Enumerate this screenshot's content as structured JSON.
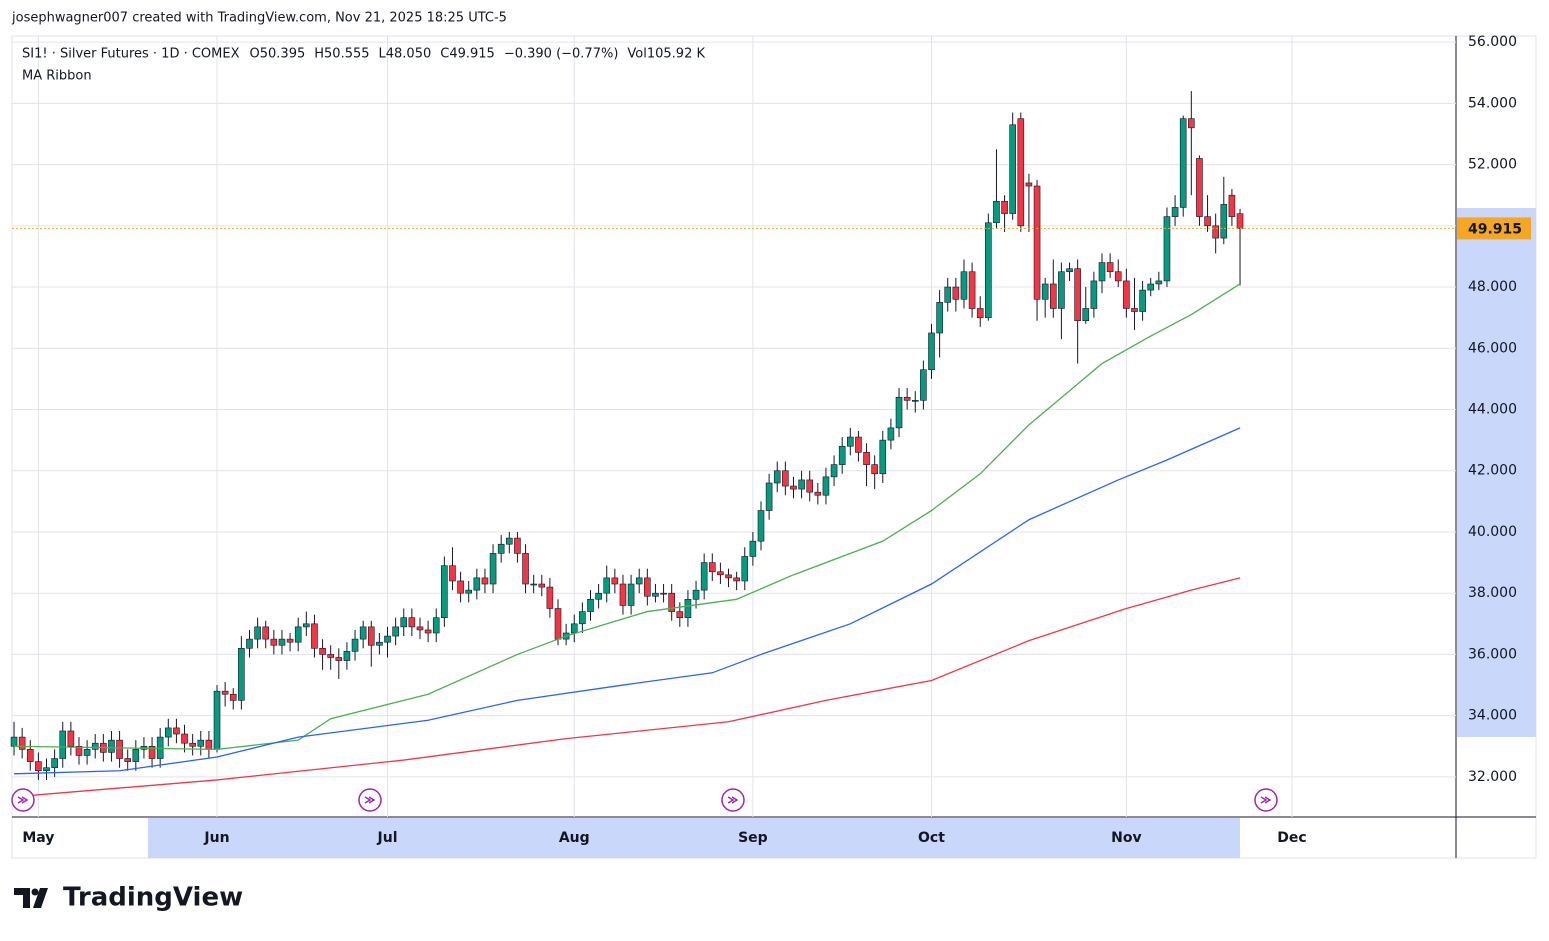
{
  "chart_data": {
    "type": "candlestick",
    "credit": "josephwagner007 created with TradingView.com, Nov 21, 2025 18:25 UTC-5",
    "title": "SI1! · Silver Futures · 1D · COMEX",
    "stats": [
      "O50.395",
      "H50.555",
      "L48.050",
      "C49.915",
      "−0.390 (−0.77%)",
      "Vol105.92 K"
    ],
    "indicator": "MA Ribbon",
    "logo": "TradingView",
    "up_color": "#089981",
    "down_color": "#f23645",
    "candles": {
      "open": [
        33.0,
        33.3,
        32.9,
        32.5,
        32.2,
        32.3,
        32.6,
        33.5,
        33.0,
        32.7,
        32.9,
        33.1,
        32.8,
        33.2,
        32.6,
        32.5,
        32.9,
        33.0,
        32.6,
        33.3,
        33.6,
        33.4,
        33.1,
        33.0,
        33.2,
        32.9,
        34.8,
        34.7,
        34.5,
        36.2,
        36.5,
        36.9,
        36.5,
        36.3,
        36.5,
        36.4,
        36.9,
        37.0,
        36.2,
        36.0,
        35.9,
        35.8,
        36.1,
        36.5,
        36.9,
        36.3,
        36.4,
        36.6,
        36.9,
        37.2,
        36.9,
        36.8,
        36.7,
        37.2,
        38.9,
        38.4,
        38.0,
        38.1,
        38.5,
        38.3,
        39.3,
        39.6,
        39.8,
        39.3,
        38.3,
        38.3,
        38.2,
        37.5,
        36.5,
        36.7,
        37.0,
        37.4,
        37.8,
        38.0,
        38.5,
        38.3,
        37.6,
        38.3,
        38.5,
        37.9,
        38.0,
        38.0,
        37.4,
        37.2,
        37.8,
        38.1,
        39.0,
        38.7,
        38.6,
        38.5,
        38.4,
        39.2,
        39.7,
        40.7,
        41.6,
        42.0,
        41.5,
        41.4,
        41.7,
        41.3,
        41.2,
        41.8,
        42.2,
        42.8,
        43.1,
        42.6,
        42.2,
        41.9,
        43.0,
        43.4,
        44.4,
        44.3,
        44.3,
        45.3,
        46.5,
        47.5,
        48.0,
        47.6,
        48.5,
        47.3,
        47.0,
        50.1,
        50.8,
        50.4,
        53.5,
        51.4,
        51.3,
        47.6,
        48.1,
        47.3,
        48.5,
        48.6,
        46.9,
        47.3,
        48.2,
        48.8,
        48.5,
        48.2,
        47.3,
        47.2,
        47.9,
        48.1,
        48.2,
        50.3,
        50.6,
        53.5,
        52.2,
        50.3,
        50.0,
        49.6,
        51.0,
        50.395
      ],
      "high": [
        33.8,
        33.6,
        33.2,
        32.8,
        32.6,
        32.9,
        33.8,
        33.8,
        33.3,
        33.2,
        33.4,
        33.4,
        33.5,
        33.5,
        32.9,
        33.2,
        33.3,
        33.3,
        33.6,
        33.9,
        33.9,
        33.7,
        33.4,
        33.5,
        33.5,
        35.0,
        35.1,
        34.9,
        36.6,
        36.8,
        37.2,
        37.1,
        36.8,
        36.8,
        36.7,
        37.2,
        37.4,
        37.3,
        36.5,
        36.3,
        36.2,
        36.4,
        36.8,
        37.1,
        37.1,
        36.7,
        36.9,
        37.2,
        37.5,
        37.5,
        37.2,
        37.1,
        37.5,
        39.2,
        39.5,
        38.7,
        38.4,
        38.8,
        38.8,
        39.6,
        39.9,
        40.0,
        40.0,
        39.6,
        38.6,
        38.6,
        38.5,
        37.8,
        37.0,
        37.3,
        37.7,
        38.1,
        38.3,
        38.9,
        38.8,
        38.6,
        38.6,
        38.8,
        38.8,
        38.3,
        38.3,
        38.3,
        37.7,
        38.1,
        38.4,
        39.3,
        39.3,
        39.0,
        38.8,
        38.7,
        39.5,
        40.0,
        41.0,
        41.9,
        42.3,
        42.3,
        41.8,
        42.0,
        42.0,
        41.6,
        42.1,
        42.5,
        43.1,
        43.4,
        43.3,
        42.9,
        42.5,
        43.3,
        43.7,
        44.7,
        44.7,
        44.6,
        45.6,
        46.8,
        47.9,
        48.3,
        48.3,
        48.9,
        48.8,
        47.7,
        50.4,
        52.5,
        51.0,
        53.7,
        53.7,
        51.7,
        51.5,
        48.3,
        48.9,
        48.8,
        48.8,
        48.9,
        48.0,
        48.5,
        49.1,
        49.1,
        48.9,
        48.6,
        48.3,
        48.2,
        48.3,
        48.5,
        50.6,
        51.0,
        53.6,
        54.4,
        52.3,
        51.0,
        50.4,
        51.6,
        51.2,
        50.555
      ],
      "low": [
        32.7,
        32.6,
        32.2,
        31.9,
        31.9,
        32.0,
        32.3,
        32.7,
        32.4,
        32.4,
        32.6,
        32.5,
        32.5,
        32.3,
        32.2,
        32.2,
        32.6,
        32.3,
        32.3,
        33.0,
        33.1,
        32.8,
        32.7,
        32.7,
        32.6,
        32.8,
        34.3,
        34.2,
        34.2,
        35.9,
        36.2,
        36.2,
        36.0,
        36.0,
        36.1,
        36.1,
        36.6,
        35.9,
        35.5,
        35.5,
        35.2,
        35.5,
        35.8,
        36.2,
        35.6,
        36.0,
        35.9,
        36.3,
        36.6,
        36.6,
        36.5,
        36.4,
        36.4,
        36.9,
        38.1,
        37.7,
        37.7,
        37.8,
        38.0,
        38.0,
        39.0,
        39.3,
        39.0,
        38.0,
        38.0,
        37.9,
        37.2,
        36.3,
        36.3,
        36.4,
        36.7,
        37.1,
        37.5,
        37.7,
        38.0,
        37.3,
        37.3,
        38.0,
        37.6,
        37.7,
        37.7,
        37.1,
        36.9,
        36.9,
        37.5,
        37.8,
        38.4,
        38.3,
        38.2,
        38.1,
        38.1,
        38.9,
        39.4,
        40.4,
        41.3,
        41.2,
        41.1,
        41.1,
        41.0,
        40.9,
        40.9,
        41.5,
        41.9,
        42.5,
        42.3,
        41.5,
        41.4,
        41.6,
        42.7,
        43.1,
        44.0,
        43.9,
        44.0,
        45.0,
        45.7,
        47.2,
        47.2,
        47.3,
        47.0,
        46.7,
        46.9,
        49.9,
        49.8,
        50.2,
        49.8,
        49.8,
        46.9,
        47.0,
        47.0,
        46.3,
        48.2,
        45.5,
        46.8,
        47.0,
        47.8,
        48.3,
        48.0,
        47.0,
        46.6,
        46.9,
        47.7,
        47.9,
        48.0,
        50.0,
        50.3,
        51.0,
        50.0,
        49.8,
        49.1,
        49.4,
        50.0,
        48.05
      ],
      "close": [
        33.3,
        32.9,
        32.5,
        32.2,
        32.3,
        32.6,
        33.5,
        33.0,
        32.7,
        32.9,
        33.1,
        32.8,
        33.2,
        32.6,
        32.5,
        32.9,
        33.0,
        32.6,
        33.3,
        33.6,
        33.4,
        33.1,
        33.0,
        33.2,
        32.9,
        34.8,
        34.7,
        34.5,
        36.2,
        36.5,
        36.9,
        36.5,
        36.3,
        36.5,
        36.4,
        36.9,
        37.0,
        36.2,
        36.0,
        35.9,
        35.8,
        36.1,
        36.5,
        36.9,
        36.3,
        36.4,
        36.6,
        36.9,
        37.2,
        36.9,
        36.8,
        36.7,
        37.2,
        38.9,
        38.4,
        38.0,
        38.1,
        38.5,
        38.3,
        39.3,
        39.6,
        39.8,
        39.3,
        38.3,
        38.3,
        38.2,
        37.5,
        36.5,
        36.7,
        37.0,
        37.4,
        37.8,
        38.0,
        38.5,
        38.3,
        37.6,
        38.3,
        38.5,
        37.9,
        38.0,
        38.0,
        37.4,
        37.2,
        37.8,
        38.1,
        39.0,
        38.7,
        38.6,
        38.5,
        38.4,
        39.2,
        39.7,
        40.7,
        41.6,
        42.0,
        41.5,
        41.4,
        41.7,
        41.3,
        41.2,
        41.8,
        42.2,
        42.8,
        43.1,
        42.6,
        42.2,
        41.9,
        43.0,
        43.4,
        44.4,
        44.3,
        44.3,
        45.3,
        46.5,
        47.5,
        48.0,
        47.6,
        48.5,
        47.3,
        47.0,
        50.1,
        50.8,
        50.4,
        53.3,
        50.0,
        51.3,
        47.6,
        48.1,
        47.3,
        48.5,
        48.6,
        46.9,
        47.3,
        48.2,
        48.8,
        48.5,
        48.2,
        47.3,
        47.2,
        47.9,
        48.1,
        48.2,
        50.3,
        50.6,
        53.5,
        53.2,
        50.3,
        50.0,
        49.6,
        50.7,
        50.3,
        49.915
      ]
    },
    "ma": [
      {
        "color": "#4caf50",
        "x": [
          0,
          25,
          35,
          39,
          51,
          62,
          68,
          78,
          89,
          96,
          107,
          113,
          119,
          125,
          134,
          140,
          145,
          151
        ],
        "values": [
          33.0,
          32.9,
          33.2,
          33.9,
          34.7,
          36.0,
          36.6,
          37.4,
          37.8,
          38.6,
          39.7,
          40.7,
          41.9,
          43.5,
          45.5,
          46.4,
          47.1,
          48.1
        ]
      },
      {
        "color": "#2962ff",
        "x": [
          0,
          13,
          25,
          35,
          51,
          62,
          75,
          86,
          92,
          103,
          113,
          125,
          136,
          142,
          151
        ],
        "values": [
          32.1,
          32.2,
          32.65,
          33.3,
          33.85,
          34.5,
          35.0,
          35.4,
          36.0,
          37.0,
          38.3,
          40.4,
          41.7,
          42.35,
          43.4
        ]
      },
      {
        "color": "#f23645",
        "x": [
          0,
          25,
          48,
          68,
          88,
          100,
          113,
          125,
          137,
          145,
          151
        ],
        "values": [
          31.35,
          31.9,
          32.55,
          33.25,
          33.8,
          34.5,
          35.15,
          36.45,
          37.5,
          38.1,
          38.5
        ]
      }
    ],
    "last_price": {
      "value": 49.915,
      "label": "49.915"
    },
    "last_price_color": "#f5a623",
    "xlim": [
      -0.25,
      177.6
    ],
    "xticks": [
      {
        "value": 3,
        "label": "May"
      },
      {
        "value": 25,
        "label": "Jun"
      },
      {
        "value": 46,
        "label": "Jul"
      },
      {
        "value": 69,
        "label": "Aug"
      },
      {
        "value": 91,
        "label": "Sep"
      },
      {
        "value": 113,
        "label": "Oct"
      },
      {
        "value": 137,
        "label": "Nov"
      },
      {
        "value": 157.4,
        "label": "Dec"
      }
    ],
    "ylim": [
      30.69,
      56.2
    ],
    "yticks": [
      {
        "value": 32,
        "label": "32.000"
      },
      {
        "value": 34,
        "label": "34.000"
      },
      {
        "value": 36,
        "label": "36.000"
      },
      {
        "value": 38,
        "label": "38.000"
      },
      {
        "value": 40,
        "label": "40.000"
      },
      {
        "value": 42,
        "label": "42.000"
      },
      {
        "value": 44,
        "label": "44.000"
      },
      {
        "value": 46,
        "label": "46.000"
      },
      {
        "value": 48,
        "label": "48.000"
      },
      {
        "value": 50,
        "label": "50.000"
      },
      {
        "value": 52,
        "label": "52.000"
      },
      {
        "value": 54,
        "label": "54.000"
      },
      {
        "value": 56,
        "label": "56.000"
      }
    ],
    "grid": true
  }
}
